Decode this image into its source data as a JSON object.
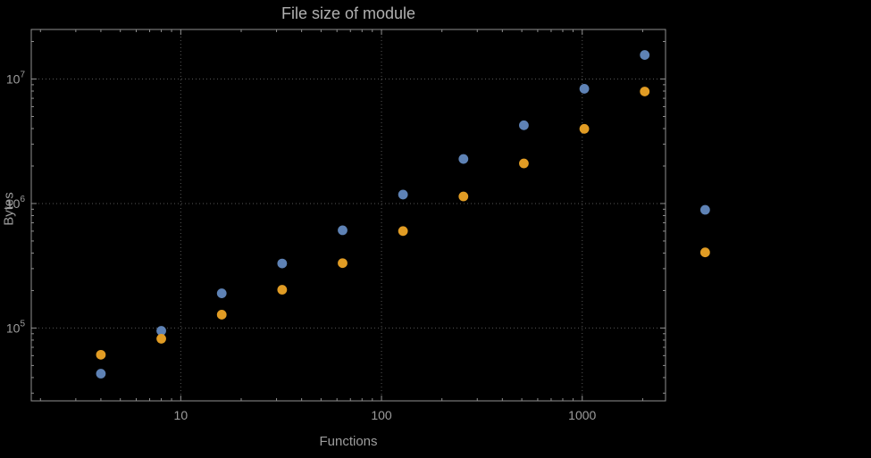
{
  "title": "File size of module",
  "colors": {
    "background": "#000000",
    "frame": "#8f8f8f",
    "grid": "#565656",
    "tick_text": "#9d9d9d",
    "series1": "#5e82b5",
    "series2": "#e19c24"
  },
  "chart_data": {
    "type": "scatter",
    "title": "File size of module",
    "xlabel": "Functions",
    "ylabel": "Bytes",
    "x_scale": "log",
    "y_scale": "log",
    "grid": true,
    "legend": "none",
    "xlim": [
      1.8,
      2600
    ],
    "ylim": [
      26000,
      25000000
    ],
    "x_ticks": [
      {
        "value": 10,
        "label": "10"
      },
      {
        "value": 100,
        "label": "100"
      },
      {
        "value": 1000,
        "label": "1000"
      }
    ],
    "y_ticks": [
      {
        "value": 100000,
        "mantissa": "10",
        "exponent": "5"
      },
      {
        "value": 1000000,
        "mantissa": "10",
        "exponent": "6"
      },
      {
        "value": 10000000,
        "mantissa": "10",
        "exponent": "7"
      }
    ],
    "x": [
      4,
      8,
      16,
      32,
      64,
      128,
      256,
      512,
      1024,
      2048,
      4096
    ],
    "series": [
      {
        "name": "series-1-blue",
        "color": "#5e82b5",
        "values": [
          43000,
          95000,
          190000,
          330000,
          610000,
          1180000,
          2280000,
          4250000,
          8350000,
          15600000,
          890000
        ]
      },
      {
        "name": "series-2-orange",
        "color": "#e19c24",
        "values": [
          61000,
          82000,
          128000,
          203000,
          332000,
          601000,
          1140000,
          2100000,
          3980000,
          7940000,
          405000
        ]
      }
    ]
  }
}
